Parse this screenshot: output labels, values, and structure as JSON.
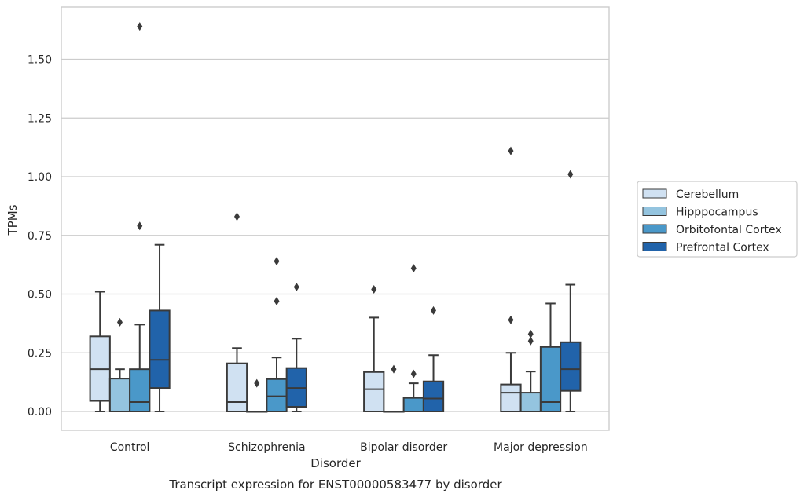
{
  "chart_data": {
    "type": "boxplot",
    "title": "",
    "caption": "Transcript expression for ENST00000583477 by disorder",
    "xlabel": "Disorder",
    "ylabel": "TPMs",
    "ylim": [
      -0.08,
      1.73
    ],
    "yticks": [
      0.0,
      0.25,
      0.5,
      0.75,
      1.0,
      1.25,
      1.5
    ],
    "ytick_labels": [
      "0.00",
      "0.25",
      "0.50",
      "0.75",
      "1.00",
      "1.25",
      "1.50"
    ],
    "grid": "horizontal",
    "legend_position": "right",
    "categories": [
      "Control",
      "Schizophrenia",
      "Bipolar disorder",
      "Major depression"
    ],
    "series": [
      {
        "name": "Cerebellum",
        "color": "#d0e1f2",
        "boxes": [
          {
            "min": 0.0,
            "q1": 0.045,
            "median": 0.18,
            "q3": 0.32,
            "max": 0.51,
            "outliers": []
          },
          {
            "min": 0.0,
            "q1": 0.0,
            "median": 0.04,
            "q3": 0.205,
            "max": 0.27,
            "outliers": [
              0.83
            ]
          },
          {
            "min": 0.0,
            "q1": 0.0,
            "median": 0.095,
            "q3": 0.168,
            "max": 0.4,
            "outliers": [
              0.52
            ]
          },
          {
            "min": 0.0,
            "q1": 0.0,
            "median": 0.08,
            "q3": 0.115,
            "max": 0.25,
            "outliers": [
              0.39,
              1.11
            ]
          }
        ]
      },
      {
        "name": "Hipppocampus",
        "color": "#94c4df",
        "boxes": [
          {
            "min": 0.0,
            "q1": 0.0,
            "median": 0.0,
            "q3": 0.14,
            "max": 0.18,
            "outliers": [
              0.38
            ]
          },
          {
            "min": 0.0,
            "q1": 0.0,
            "median": 0.0,
            "q3": 0.0,
            "max": 0.0,
            "outliers": [
              0.12
            ]
          },
          {
            "min": 0.0,
            "q1": 0.0,
            "median": 0.0,
            "q3": 0.0,
            "max": 0.0,
            "outliers": [
              0.18
            ]
          },
          {
            "min": 0.0,
            "q1": 0.0,
            "median": 0.0,
            "q3": 0.08,
            "max": 0.17,
            "outliers": [
              0.3,
              0.33
            ]
          }
        ]
      },
      {
        "name": "Orbitofontal Cortex",
        "color": "#4a98c9",
        "boxes": [
          {
            "min": 0.0,
            "q1": 0.0,
            "median": 0.04,
            "q3": 0.18,
            "max": 0.37,
            "outliers": [
              0.79,
              1.64
            ]
          },
          {
            "min": 0.0,
            "q1": 0.0,
            "median": 0.065,
            "q3": 0.138,
            "max": 0.23,
            "outliers": [
              0.47,
              0.64
            ]
          },
          {
            "min": 0.0,
            "q1": 0.0,
            "median": 0.0,
            "q3": 0.058,
            "max": 0.12,
            "outliers": [
              0.16,
              0.61
            ]
          },
          {
            "min": 0.0,
            "q1": 0.0,
            "median": 0.04,
            "q3": 0.275,
            "max": 0.46,
            "outliers": []
          }
        ]
      },
      {
        "name": "Prefrontal Cortex",
        "color": "#2163aa",
        "boxes": [
          {
            "min": 0.0,
            "q1": 0.1,
            "median": 0.22,
            "q3": 0.43,
            "max": 0.71,
            "outliers": []
          },
          {
            "min": 0.0,
            "q1": 0.02,
            "median": 0.1,
            "q3": 0.185,
            "max": 0.31,
            "outliers": [
              0.53
            ]
          },
          {
            "min": 0.0,
            "q1": 0.0,
            "median": 0.055,
            "q3": 0.128,
            "max": 0.24,
            "outliers": [
              0.43
            ]
          },
          {
            "min": 0.0,
            "q1": 0.088,
            "median": 0.18,
            "q3": 0.295,
            "max": 0.54,
            "outliers": [
              1.01
            ]
          }
        ]
      }
    ],
    "colors": {
      "grid": "#cccccc",
      "axis": "#cccccc",
      "box_edge": "#3a3a3a",
      "text": "#262626"
    }
  }
}
